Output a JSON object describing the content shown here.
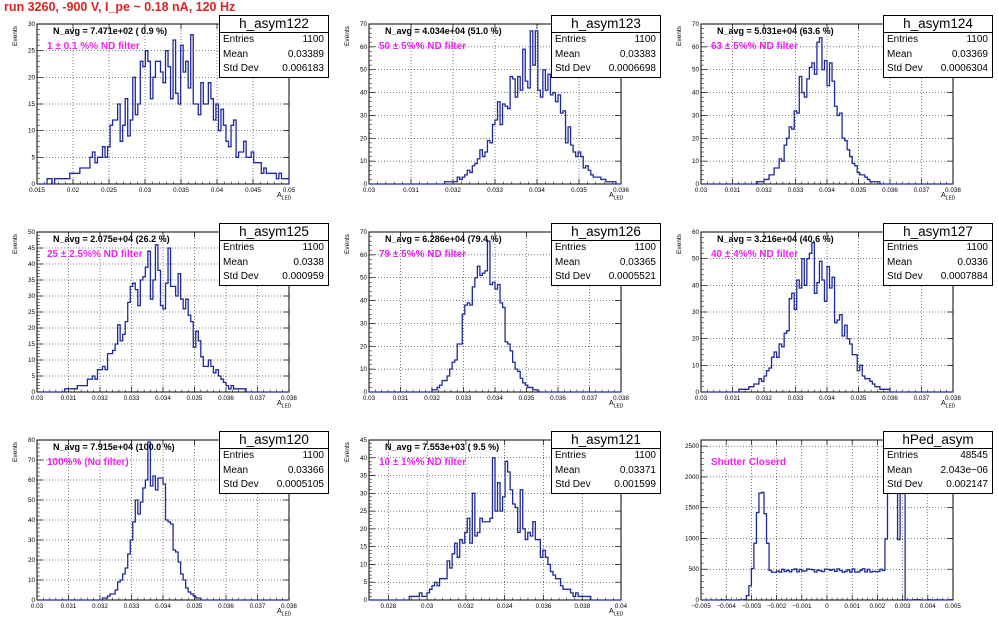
{
  "canvas_title": "run 3260,  -900 V, I_pe ~ 0.18 nA, 120 Hz",
  "colors": {
    "histogram": "#1f2a9a",
    "title": "#e32020",
    "filter_label": "#ee22ee",
    "grid": "#000000"
  },
  "stats_labels": {
    "entries": "Entries",
    "mean": "Mean",
    "std": "Std Dev"
  },
  "chart_data": [
    {
      "type": "bar",
      "name": "h_asym122",
      "entries": "1100",
      "mean": "0.03389",
      "std": "0.006183",
      "navg": "N_avg = 7.471e+02 ( 0.9 %)",
      "filter": "1 ± 0.1 %% ND filter",
      "xlabel": "A_LED",
      "ylabel": "Events",
      "xlim": [
        0.015,
        0.05
      ],
      "ylim": [
        0,
        30
      ],
      "center": 0.0339,
      "sigma": 0.0062,
      "peak": 23,
      "nbins": 100,
      "noise": 0.35,
      "seed": 11,
      "xticks": [
        0.015,
        0.02,
        0.025,
        0.03,
        0.035,
        0.04,
        0.045,
        0.05
      ],
      "xtick_labels": [
        "0.015",
        "0.02",
        "0.025",
        "0.03",
        "0.035",
        "0.04",
        "0.045",
        "0.05"
      ],
      "yticks": [
        0,
        5,
        10,
        15,
        20,
        25,
        30
      ],
      "ytick_labels": [
        "0",
        "5",
        "10",
        "15",
        "20",
        "25",
        "30"
      ]
    },
    {
      "type": "bar",
      "name": "h_asym123",
      "entries": "1100",
      "mean": "0.03383",
      "std": "0.0006698",
      "navg": "N_avg = 4.034e+04 (51.0 %)",
      "filter": "50 ± 5%% ND filter",
      "xlabel": "A_LED",
      "ylabel": "Events",
      "xlim": [
        0.03,
        0.036
      ],
      "ylim": [
        0,
        70
      ],
      "center": 0.03383,
      "sigma": 0.00067,
      "peak": 55,
      "nbins": 100,
      "noise": 0.25,
      "seed": 23,
      "xticks": [
        0.03,
        0.031,
        0.032,
        0.033,
        0.034,
        0.035,
        0.036
      ],
      "xtick_labels": [
        "0.03",
        "0.031",
        "0.032",
        "0.033",
        "0.034",
        "0.035",
        "0.036"
      ],
      "yticks": [
        0,
        10,
        20,
        30,
        40,
        50,
        60,
        70
      ],
      "ytick_labels": [
        "0",
        "10",
        "20",
        "30",
        "40",
        "50",
        "60",
        "70"
      ]
    },
    {
      "type": "bar",
      "name": "h_asym124",
      "entries": "1100",
      "mean": "0.03369",
      "std": "0.0006304",
      "navg": "N_avg = 5.031e+04 (63.6 %)",
      "filter": "63 ± 5%% ND filter",
      "xlabel": "A_LED",
      "ylabel": "Events",
      "xlim": [
        0.03,
        0.038
      ],
      "ylim": [
        0,
        70
      ],
      "center": 0.03369,
      "sigma": 0.00063,
      "peak": 56,
      "nbins": 100,
      "noise": 0.2,
      "seed": 37,
      "xticks": [
        0.03,
        0.031,
        0.032,
        0.033,
        0.034,
        0.035,
        0.036,
        0.037,
        0.038
      ],
      "xtick_labels": [
        "0.03",
        "0.031",
        "0.032",
        "0.033",
        "0.034",
        "0.035",
        "0.036",
        "0.037",
        "0.038"
      ],
      "yticks": [
        0,
        10,
        20,
        30,
        40,
        50,
        60,
        70
      ],
      "ytick_labels": [
        "0",
        "10",
        "20",
        "30",
        "40",
        "50",
        "60",
        "70"
      ]
    },
    {
      "type": "bar",
      "name": "h_asym125",
      "entries": "1100",
      "mean": "0.0338",
      "std": "0.000959",
      "navg": "N_avg = 2.075e+04 (26.2 %)",
      "filter": "25 ± 2.5%% ND filter",
      "xlabel": "A_LED",
      "ylabel": "Events",
      "xlim": [
        0.03,
        0.038
      ],
      "ylim": [
        0,
        50
      ],
      "center": 0.0338,
      "sigma": 0.00096,
      "peak": 38,
      "nbins": 100,
      "noise": 0.3,
      "seed": 41,
      "xticks": [
        0.03,
        0.031,
        0.032,
        0.033,
        0.034,
        0.035,
        0.036,
        0.037,
        0.038
      ],
      "xtick_labels": [
        "0.03",
        "0.031",
        "0.032",
        "0.033",
        "0.034",
        "0.035",
        "0.036",
        "0.037",
        "0.038"
      ],
      "yticks": [
        0,
        5,
        10,
        15,
        20,
        25,
        30,
        35,
        40,
        45,
        50
      ],
      "ytick_labels": [
        "0",
        "5",
        "10",
        "15",
        "20",
        "25",
        "30",
        "35",
        "40",
        "45",
        "50"
      ]
    },
    {
      "type": "bar",
      "name": "h_asym126",
      "entries": "1100",
      "mean": "0.03365",
      "std": "0.0005521",
      "navg": "N_avg = 6.286e+04 (79.4 %)",
      "filter": "79 ± 5%% ND filter",
      "xlabel": "A_LED",
      "ylabel": "Events",
      "xlim": [
        0.03,
        0.038
      ],
      "ylim": [
        0,
        70
      ],
      "center": 0.03365,
      "sigma": 0.00055,
      "peak": 62,
      "nbins": 100,
      "noise": 0.2,
      "seed": 53,
      "xticks": [
        0.03,
        0.031,
        0.032,
        0.033,
        0.034,
        0.035,
        0.036,
        0.037,
        0.038
      ],
      "xtick_labels": [
        "0.03",
        "0.031",
        "0.032",
        "0.033",
        "0.034",
        "0.035",
        "0.036",
        "0.037",
        "0.038"
      ],
      "yticks": [
        0,
        10,
        20,
        30,
        40,
        50,
        60,
        70
      ],
      "ytick_labels": [
        "0",
        "10",
        "20",
        "30",
        "40",
        "50",
        "60",
        "70"
      ]
    },
    {
      "type": "bar",
      "name": "h_asym127",
      "entries": "1100",
      "mean": "0.0336",
      "std": "0.0007884",
      "navg": "N_avg = 3.216e+04 (40.6 %)",
      "filter": "40 ± 4%% ND filter",
      "xlabel": "A_LED",
      "ylabel": "Events",
      "xlim": [
        0.03,
        0.038
      ],
      "ylim": [
        0,
        60
      ],
      "center": 0.0336,
      "sigma": 0.00079,
      "peak": 46,
      "nbins": 100,
      "noise": 0.25,
      "seed": 61,
      "xticks": [
        0.03,
        0.031,
        0.032,
        0.033,
        0.034,
        0.035,
        0.036,
        0.037,
        0.038
      ],
      "xtick_labels": [
        "0.03",
        "0.031",
        "0.032",
        "0.033",
        "0.034",
        "0.035",
        "0.036",
        "0.037",
        "0.038"
      ],
      "yticks": [
        0,
        10,
        20,
        30,
        40,
        50,
        60
      ],
      "ytick_labels": [
        "0",
        "10",
        "20",
        "30",
        "40",
        "50",
        "60"
      ]
    },
    {
      "type": "bar",
      "name": "h_asym120",
      "entries": "1100",
      "mean": "0.03366",
      "std": "0.0005105",
      "navg": "N_avg = 7.915e+04 (100.0 %)",
      "filter": "100%% (No filter)",
      "xlabel": "A_LED",
      "ylabel": "Events",
      "xlim": [
        0.03,
        0.038
      ],
      "ylim": [
        0,
        80
      ],
      "center": 0.03366,
      "sigma": 0.00051,
      "peak": 68,
      "nbins": 100,
      "noise": 0.2,
      "seed": 71,
      "xticks": [
        0.03,
        0.031,
        0.032,
        0.033,
        0.034,
        0.035,
        0.036,
        0.037,
        0.038
      ],
      "xtick_labels": [
        "0.03",
        "0.031",
        "0.032",
        "0.033",
        "0.034",
        "0.035",
        "0.036",
        "0.037",
        "0.038"
      ],
      "yticks": [
        0,
        10,
        20,
        30,
        40,
        50,
        60,
        70,
        80
      ],
      "ytick_labels": [
        "0",
        "10",
        "20",
        "30",
        "40",
        "50",
        "60",
        "70",
        "80"
      ]
    },
    {
      "type": "bar",
      "name": "h_asym121",
      "entries": "1100",
      "mean": "0.03371",
      "std": "0.001599",
      "navg": "N_avg = 7.553e+03 ( 9.5 %)",
      "filter": "10 ± 1%% ND filter",
      "xlabel": "A_LED",
      "ylabel": "Events",
      "xlim": [
        0.027,
        0.04
      ],
      "ylim": [
        0,
        45
      ],
      "center": 0.03371,
      "sigma": 0.0016,
      "peak": 33,
      "nbins": 100,
      "noise": 0.3,
      "seed": 83,
      "xticks": [
        0.028,
        0.03,
        0.032,
        0.034,
        0.036,
        0.038,
        0.04
      ],
      "xtick_labels": [
        "0.028",
        "0.03",
        "0.032",
        "0.034",
        "0.036",
        "0.038",
        "0.04"
      ],
      "yticks": [
        0,
        5,
        10,
        15,
        20,
        25,
        30,
        35,
        40,
        45
      ],
      "ytick_labels": [
        "0",
        "5",
        "10",
        "15",
        "20",
        "25",
        "30",
        "35",
        "40",
        "45"
      ]
    },
    {
      "type": "bar",
      "name": "hPed_asym",
      "entries": "48545",
      "mean": "2.043e−06",
      "std": "0.002147",
      "navg": "",
      "filter": "Shutter Closerd",
      "xlabel": "",
      "ylabel": "",
      "xlim": [
        -0.005,
        0.005
      ],
      "ylim": [
        0,
        2600
      ],
      "pedestal": true,
      "nbins": 100,
      "noise": 0.05,
      "seed": 97,
      "xticks": [
        -0.005,
        -0.004,
        -0.003,
        -0.002,
        -0.001,
        0,
        0.001,
        0.002,
        0.003,
        0.004,
        0.005
      ],
      "xtick_labels": [
        "−0.005",
        "−0.004",
        "−0.003",
        "−0.002",
        "−0.001",
        "0",
        "0.001",
        "0.002",
        "0.003",
        "0.004",
        "0.005"
      ],
      "yticks": [
        0,
        500,
        1000,
        1500,
        2000,
        2500
      ],
      "ytick_labels": [
        "0",
        "500",
        "1000",
        "1500",
        "2000",
        "2500"
      ]
    }
  ]
}
